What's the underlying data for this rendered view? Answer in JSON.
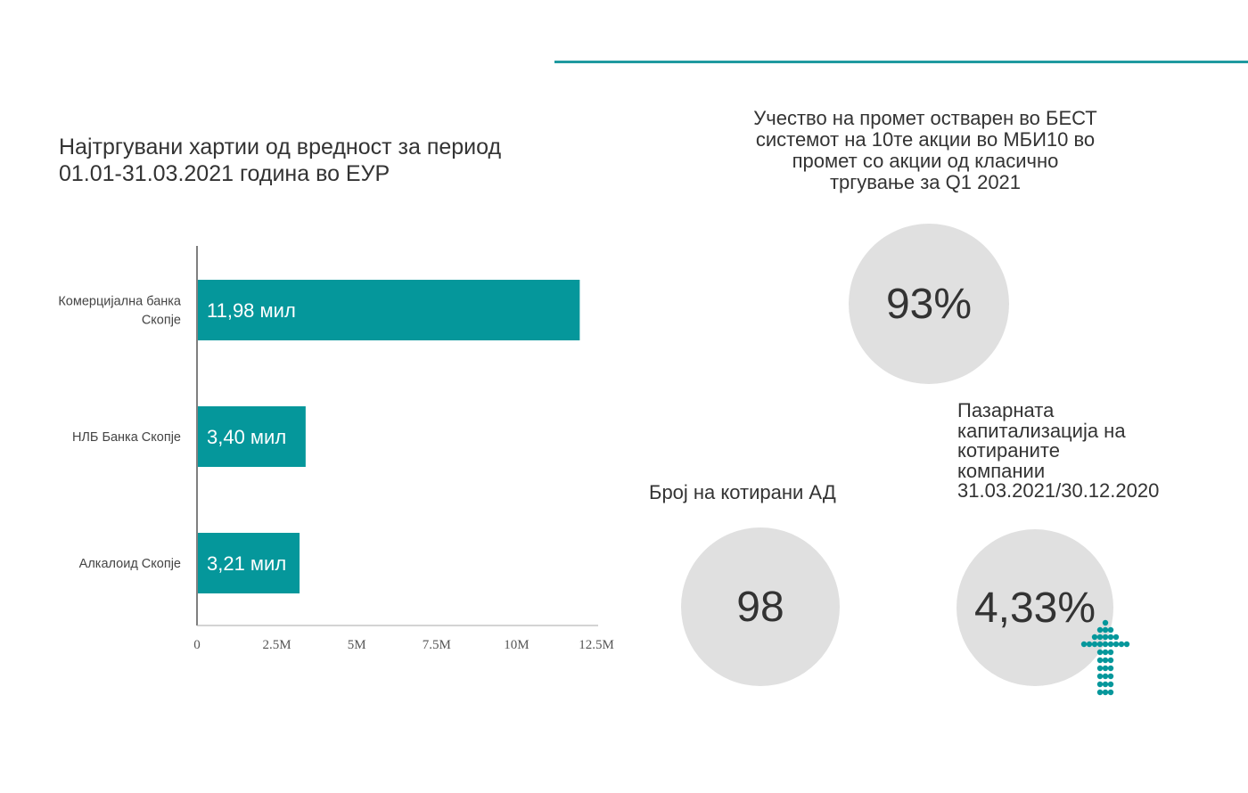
{
  "chart_data": {
    "type": "bar",
    "orientation": "horizontal",
    "title": "Најтргувани хартии од вредност за  период\n01.01-31.03.2021 година во ЕУР",
    "categories": [
      [
        "Комерцијална банка",
        "Скопје"
      ],
      [
        "НЛБ Банка Скопје"
      ],
      [
        "Алкалоид Скопје"
      ]
    ],
    "values": [
      11.98,
      3.4,
      3.21
    ],
    "value_unit": "M",
    "data_labels": [
      "11,98 мил",
      "3,40 мил",
      "3,21 мил"
    ],
    "x_ticks": [
      "0",
      "2.5M",
      "5M",
      "7.5M",
      "10M",
      "12.5M"
    ],
    "xlim": [
      0,
      12.5
    ],
    "bar_color": "#05979b",
    "grid": false
  },
  "kpis": {
    "best_share": {
      "title": "Учество на промет остварен во БЕСТ\nсистемот на 10те акции во МБИ10 во\nпромет со акции од класично\nтргување за Q1 2021",
      "value": "93%"
    },
    "listed_count": {
      "title": "Број на котирани АД",
      "value": "98"
    },
    "market_cap": {
      "title": "Пазарната\nкапитализација на\nкотираните\nкомпании\n31.03.2021/30.12.2020",
      "value": "4,33%",
      "trend_icon": "up-arrow-icon"
    }
  },
  "colors": {
    "accent": "#05979b",
    "rule": "#1f9aa0",
    "circle": "#e0e0e0"
  }
}
